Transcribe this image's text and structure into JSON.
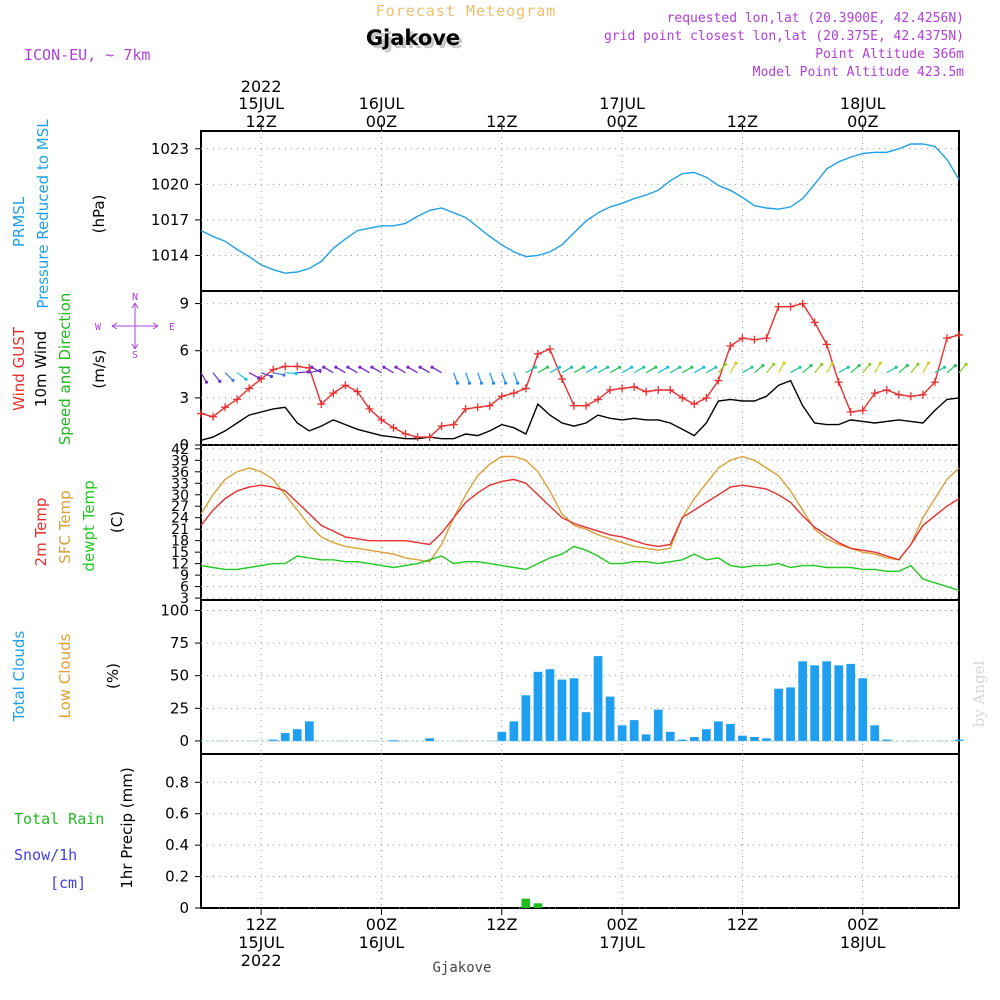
{
  "header": {
    "super_title": "Forecast Meteogram",
    "location": "Gjakove",
    "model": "ICON-EU, ~ 7km",
    "requested": "requested lon,lat (20.3900E, 42.4256N)",
    "grid_point": "grid point closest lon,lat (20.375E, 42.4375N)",
    "point_altitude": "Point Altitude 366m",
    "model_altitude": "Model Point Altitude 423.5m",
    "credit": "by Angel",
    "footer_location": "Gjakove"
  },
  "colors": {
    "pressure": "#1ea0e6",
    "gust": "#e83030",
    "wind": "#000000",
    "direction": "#22b822",
    "temp": "#e83030",
    "sfc_temp": "#daa038",
    "dewpoint": "#22c822",
    "total_clouds": "#1e9ff0",
    "low_clouds": "#e0a030",
    "rain": "#22bb22",
    "snow": "#4040e0",
    "meta": "#b040d8",
    "super_title": "#f0c070"
  },
  "time_axis": {
    "range_hours": [
      -5,
      58
    ],
    "top_year": "2022",
    "top_ticks": [
      {
        "h": 0,
        "l1": "15JUL",
        "l2": "12Z"
      },
      {
        "h": 10,
        "l1": "16JUL",
        "l2": "00Z"
      },
      {
        "h": 20,
        "l1": "",
        "l2": "12Z"
      },
      {
        "h": 30,
        "l1": "17JUL",
        "l2": "00Z"
      },
      {
        "h": 40,
        "l1": "",
        "l2": "12Z"
      },
      {
        "h": 50,
        "l1": "18JUL",
        "l2": "00Z"
      }
    ],
    "bottom_ticks": [
      {
        "h": 0,
        "l1": "12Z",
        "l2": "15JUL",
        "l3": "2022"
      },
      {
        "h": 10,
        "l1": "00Z",
        "l2": "16JUL",
        "l3": ""
      },
      {
        "h": 20,
        "l1": "12Z",
        "l2": "",
        "l3": ""
      },
      {
        "h": 30,
        "l1": "00Z",
        "l2": "17JUL",
        "l3": ""
      },
      {
        "h": 40,
        "l1": "12Z",
        "l2": "",
        "l3": ""
      },
      {
        "h": 50,
        "l1": "00Z",
        "l2": "18JUL",
        "l3": ""
      }
    ]
  },
  "panels": {
    "pressure": {
      "label_a": "PRMSL",
      "label_b": "Pressure Reduced to MSL",
      "unit": "(hPa)"
    },
    "wind": {
      "label_gust": "Wind GUST",
      "label_wind": "10m Wind",
      "label_dir": "Speed and Direction",
      "unit": "(m/s)",
      "compass_n": "N",
      "compass_s": "S",
      "compass_w": "W",
      "compass_e": "E"
    },
    "temp": {
      "label_t2m": "2m Temp",
      "label_sfc": "SFC Temp",
      "label_dew": "dewpt Temp",
      "unit": "(C)"
    },
    "clouds": {
      "label_total": "Total Clouds",
      "label_low": "Low Clouds",
      "unit": "(%)"
    },
    "precip": {
      "label_rain": "Total  Rain",
      "label_snow": "Snow/1h",
      "label_cm": "[cm]",
      "label_axis": "1hr Precip (mm)"
    }
  },
  "chart_data": [
    {
      "type": "line",
      "ylabel": "Pressure Reduced to MSL (hPa)",
      "ylim": [
        1011,
        1024.5
      ],
      "yticks": [
        1014,
        1017,
        1020,
        1023
      ],
      "x_hours": [
        -5,
        -4,
        -3,
        -2,
        -1,
        0,
        1,
        2,
        3,
        4,
        5,
        6,
        7,
        8,
        9,
        10,
        11,
        12,
        13,
        14,
        15,
        16,
        17,
        18,
        19,
        20,
        21,
        22,
        23,
        24,
        25,
        26,
        27,
        28,
        29,
        30,
        31,
        32,
        33,
        34,
        35,
        36,
        37,
        38,
        39,
        40,
        41,
        42,
        43,
        44,
        45,
        46,
        47,
        48,
        49,
        50,
        51,
        52,
        53,
        54,
        55,
        56,
        57,
        58
      ],
      "series": [
        {
          "name": "PRMSL",
          "values": [
            1016.1,
            1015.6,
            1015.2,
            1014.5,
            1013.9,
            1013.2,
            1012.8,
            1012.5,
            1012.6,
            1012.9,
            1013.5,
            1014.6,
            1015.4,
            1016.1,
            1016.3,
            1016.5,
            1016.5,
            1016.7,
            1017.3,
            1017.8,
            1018.0,
            1017.6,
            1017.2,
            1016.4,
            1015.6,
            1014.9,
            1014.3,
            1013.9,
            1014.0,
            1014.3,
            1014.9,
            1015.9,
            1016.9,
            1017.6,
            1018.1,
            1018.4,
            1018.8,
            1019.1,
            1019.5,
            1020.3,
            1020.9,
            1021.0,
            1020.6,
            1019.9,
            1019.5,
            1018.9,
            1018.2,
            1018.0,
            1017.9,
            1018.1,
            1018.8,
            1020.0,
            1021.3,
            1021.9,
            1022.3,
            1022.6,
            1022.7,
            1022.7,
            1023.0,
            1023.4,
            1023.4,
            1023.2,
            1022.1,
            1020.4
          ]
        }
      ]
    },
    {
      "type": "line",
      "ylabel": "(m/s)",
      "ylim": [
        0,
        9.8
      ],
      "yticks": [
        0,
        3,
        6,
        9
      ],
      "x_hours": [
        -5,
        -4,
        -3,
        -2,
        -1,
        0,
        1,
        2,
        3,
        4,
        5,
        6,
        7,
        8,
        9,
        10,
        11,
        12,
        13,
        14,
        15,
        16,
        17,
        18,
        19,
        20,
        21,
        22,
        23,
        24,
        25,
        26,
        27,
        28,
        29,
        30,
        31,
        32,
        33,
        34,
        35,
        36,
        37,
        38,
        39,
        40,
        41,
        42,
        43,
        44,
        45,
        46,
        47,
        48,
        49,
        50,
        51,
        52,
        53,
        54,
        55,
        56,
        57,
        58
      ],
      "series": [
        {
          "name": "Wind GUST",
          "values": [
            2.0,
            1.8,
            2.4,
            2.9,
            3.6,
            4.2,
            4.8,
            5.0,
            5.0,
            4.9,
            2.6,
            3.3,
            3.8,
            3.4,
            2.3,
            1.6,
            1.1,
            0.7,
            0.5,
            0.5,
            1.2,
            1.3,
            2.3,
            2.4,
            2.5,
            3.1,
            3.3,
            3.6,
            5.8,
            6.1,
            4.2,
            2.5,
            2.5,
            2.9,
            3.5,
            3.6,
            3.7,
            3.4,
            3.5,
            3.5,
            3.0,
            2.6,
            3.0,
            4.1,
            6.3,
            6.8,
            6.7,
            6.8,
            8.8,
            8.8,
            9.0,
            7.8,
            6.4,
            4.0,
            2.1,
            2.2,
            3.3,
            3.5,
            3.2,
            3.1,
            3.2,
            4.0,
            6.8,
            7.0
          ],
          "markers": true
        },
        {
          "name": "10m Wind",
          "values": [
            0.3,
            0.5,
            0.9,
            1.4,
            1.9,
            2.1,
            2.3,
            2.4,
            1.4,
            0.9,
            1.2,
            1.6,
            1.3,
            1.0,
            0.8,
            0.6,
            0.5,
            0.4,
            0.4,
            0.5,
            0.4,
            0.4,
            0.7,
            0.6,
            0.9,
            1.3,
            1.1,
            0.7,
            2.6,
            1.9,
            1.4,
            1.2,
            1.4,
            1.9,
            1.7,
            1.6,
            1.7,
            1.6,
            1.6,
            1.4,
            1.0,
            0.6,
            1.4,
            2.8,
            2.9,
            2.8,
            2.8,
            3.1,
            3.8,
            4.1,
            2.5,
            1.4,
            1.3,
            1.3,
            1.6,
            1.5,
            1.4,
            1.5,
            1.6,
            1.5,
            1.4,
            2.2,
            2.9,
            3.0
          ]
        }
      ]
    },
    {
      "type": "line",
      "ylabel": "(C)",
      "ylim": [
        2.5,
        43
      ],
      "yticks": [
        3,
        6,
        9,
        12,
        15,
        18,
        21,
        24,
        27,
        30,
        33,
        36,
        39,
        42
      ],
      "x_hours": [
        -5,
        -4,
        -3,
        -2,
        -1,
        0,
        1,
        2,
        3,
        4,
        5,
        6,
        7,
        8,
        9,
        10,
        11,
        12,
        13,
        14,
        15,
        16,
        17,
        18,
        19,
        20,
        21,
        22,
        23,
        24,
        25,
        26,
        27,
        28,
        29,
        30,
        31,
        32,
        33,
        34,
        35,
        36,
        37,
        38,
        39,
        40,
        41,
        42,
        43,
        44,
        45,
        46,
        47,
        48,
        49,
        50,
        51,
        52,
        53,
        54,
        55,
        56,
        57,
        58
      ],
      "series": [
        {
          "name": "2m Temp",
          "values": [
            22,
            26,
            29,
            31,
            32,
            32.5,
            32,
            31,
            28,
            25,
            22,
            20.5,
            19,
            18.5,
            18,
            18,
            18,
            18,
            17.5,
            17,
            20,
            24,
            28,
            30.5,
            32.5,
            33.5,
            34,
            33,
            30,
            27,
            24,
            22.5,
            21.5,
            20.5,
            19.5,
            19,
            18,
            17,
            16.5,
            17,
            24,
            26,
            28,
            30,
            32,
            32.5,
            32,
            31.5,
            30,
            28,
            24.5,
            21.5,
            19.5,
            17.5,
            16,
            15.5,
            15,
            14,
            13,
            17,
            22,
            24.5,
            27,
            29
          ]
        },
        {
          "name": "SFC Temp",
          "values": [
            25,
            30,
            34,
            36,
            37,
            36,
            34,
            30,
            26,
            22,
            19,
            17.5,
            16.5,
            16,
            15.5,
            15,
            14.5,
            13.5,
            13,
            12.5,
            17,
            24,
            30,
            35,
            38,
            40,
            40,
            39,
            36,
            31,
            25,
            22,
            21,
            19.5,
            18.5,
            17.5,
            16.5,
            16,
            15.5,
            16,
            24,
            29,
            33,
            37,
            39,
            40,
            39,
            37,
            35,
            31,
            26,
            21,
            18.5,
            17,
            16,
            15,
            14.5,
            13.5,
            13,
            17,
            24,
            29,
            34,
            37
          ]
        },
        {
          "name": "dewpt Temp",
          "values": [
            11.5,
            11,
            10.5,
            10.5,
            11,
            11.5,
            12,
            12,
            14,
            13.5,
            13,
            13,
            12.5,
            12.5,
            12,
            11.5,
            11,
            11.5,
            12,
            13,
            14,
            12,
            12.5,
            12.5,
            12,
            11.5,
            11,
            10.5,
            12,
            13.5,
            14.5,
            16.5,
            15.5,
            14,
            12,
            12,
            12.5,
            12.5,
            12,
            12.5,
            13,
            14.5,
            13,
            13.5,
            11.5,
            11,
            11.5,
            11.5,
            12,
            11,
            11.5,
            11.5,
            11,
            11,
            11,
            10.5,
            10.5,
            10,
            10,
            11.5,
            8,
            7,
            6,
            5
          ]
        }
      ]
    },
    {
      "type": "bar",
      "ylabel": "(%)",
      "ylim": [
        -10,
        108
      ],
      "yticks": [
        0,
        25,
        50,
        75,
        100
      ],
      "x_hours": [
        1,
        2,
        3,
        4,
        11,
        14,
        20,
        21,
        22,
        23,
        24,
        25,
        26,
        27,
        28,
        29,
        30,
        31,
        32,
        33,
        34,
        35,
        36,
        37,
        38,
        39,
        40,
        41,
        42,
        43,
        44,
        45,
        46,
        47,
        48,
        49,
        50,
        51,
        52,
        58
      ],
      "series": [
        {
          "name": "Total Clouds",
          "values": [
            1,
            6,
            9,
            15,
            0.5,
            2,
            7,
            15,
            35,
            53,
            55,
            47,
            48,
            22,
            65,
            34,
            12,
            16,
            5,
            24,
            7,
            1,
            3,
            9,
            15,
            13,
            4,
            3,
            2,
            40,
            41,
            61,
            58,
            61,
            58,
            59,
            48,
            12,
            1,
            1
          ]
        },
        {
          "name": "Low Clouds",
          "values": []
        }
      ]
    },
    {
      "type": "bar",
      "ylabel": "1hr Precip (mm)",
      "ylim": [
        0,
        0.98
      ],
      "yticks": [
        0,
        0.2,
        0.4,
        0.6,
        0.8
      ],
      "x_hours": [
        22,
        23
      ],
      "series": [
        {
          "name": "Total Rain",
          "values": [
            0.06,
            0.03
          ]
        }
      ]
    }
  ]
}
